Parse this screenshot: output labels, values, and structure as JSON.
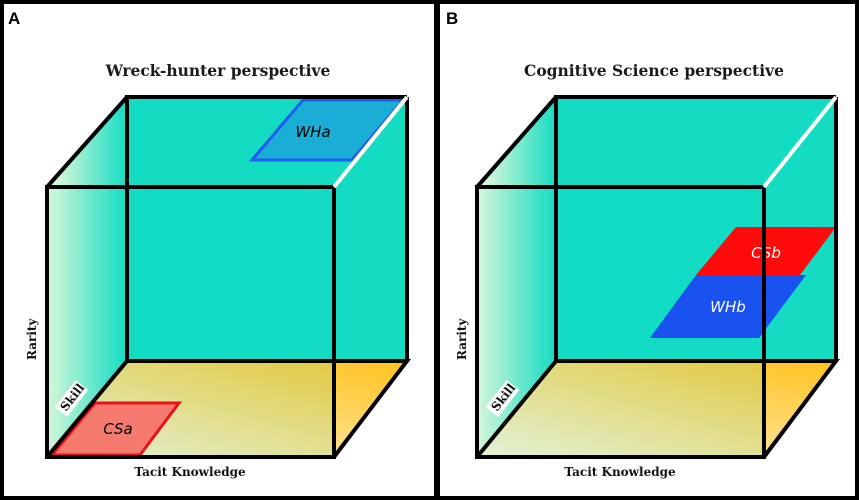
{
  "panels": [
    {
      "letter": "A",
      "title": "Wreck-hunter perspective",
      "axes": {
        "vertical": "Rarity",
        "depth": "Skill",
        "horizontal": "Tacit Knowledge"
      },
      "regions": [
        {
          "label": "WHa",
          "fill": "#1aaed6",
          "stroke": "#1f5cf0",
          "text_color": "#0a0a0a"
        },
        {
          "label": "CSa",
          "fill": "#f47a6e",
          "stroke": "#e8121c",
          "text_color": "#0a0a0a"
        }
      ]
    },
    {
      "letter": "B",
      "title": "Cognitive Science perspective",
      "axes": {
        "vertical": "Rarity",
        "depth": "Skill",
        "horizontal": "Tacit Knowledge"
      },
      "regions": [
        {
          "label": "CSb",
          "fill": "#ff0a0a",
          "stroke": "#ff0a0a",
          "text_color": "#ffffff"
        },
        {
          "label": "WHb",
          "fill": "#1a52f0",
          "stroke": "#1a52f0",
          "text_color": "#ffffff"
        }
      ]
    }
  ],
  "colors": {
    "cube_face": "#13dcc3",
    "floor_light": "#fff6dc",
    "floor_dark": "#ffc21c",
    "side_light": "#f2fbdc",
    "edge": "#000000",
    "highlight_edge": "#ffffff"
  }
}
